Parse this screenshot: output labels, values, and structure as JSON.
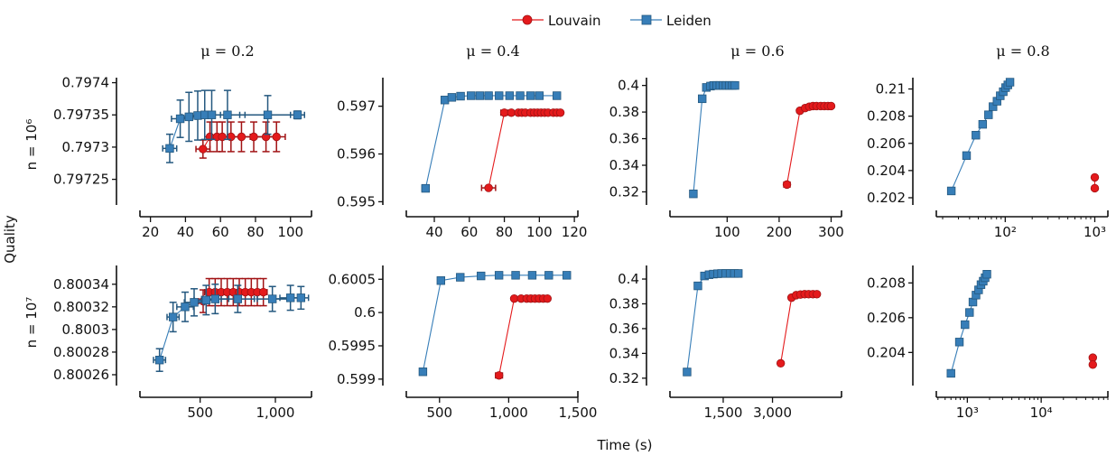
{
  "figure": {
    "legend_placement": "top-center",
    "x_label": "Time (s)",
    "y_label": "Quality",
    "column_titles": [
      "μ = 0.2",
      "μ = 0.4",
      "μ = 0.6",
      "μ = 0.8"
    ],
    "row_labels": [
      "n = 10⁶",
      "n = 10⁷"
    ],
    "series": [
      {
        "name": "Louvain",
        "color": "#e41a1c",
        "marker": "circle"
      },
      {
        "name": "Leiden",
        "color": "#377eb8",
        "marker": "square"
      }
    ]
  },
  "chart_data": [
    {
      "type": "line",
      "row": 0,
      "col": 0,
      "xscale": "linear",
      "xlim": [
        14,
        112
      ],
      "ylim": [
        0.797213,
        0.797405
      ],
      "xticks": [
        20,
        40,
        60,
        80,
        100
      ],
      "xtick_labels": [
        "20",
        "40",
        "60",
        "80",
        "100"
      ],
      "yticks": [
        0.79725,
        0.7973,
        0.79735,
        0.7974
      ],
      "ytick_labels": [
        "0.79725",
        "0.7973",
        "0.79735",
        "0.7974"
      ],
      "series": [
        {
          "name": "Louvain",
          "x": [
            50,
            54,
            58,
            61,
            66,
            72,
            79,
            86,
            92
          ],
          "y": [
            0.797297,
            0.797316,
            0.797316,
            0.797316,
            0.797316,
            0.797316,
            0.797316,
            0.797316,
            0.797316
          ],
          "xerr": [
            4,
            3,
            4,
            3,
            6,
            5,
            6,
            7,
            5
          ],
          "yerr": [
            1.4e-05,
            2.3e-05,
            2.3e-05,
            2.3e-05,
            2.3e-05,
            2.3e-05,
            2.3e-05,
            2.3e-05,
            2.3e-05
          ]
        },
        {
          "name": "Leiden",
          "x": [
            31,
            37,
            42,
            47,
            51,
            55,
            64,
            87,
            104
          ],
          "y": [
            0.797298,
            0.797344,
            0.797347,
            0.797349,
            0.79735,
            0.79735,
            0.79735,
            0.79735,
            0.79735
          ],
          "xerr": [
            4,
            5,
            4,
            4,
            6,
            5,
            10,
            16,
            4
          ],
          "yerr": [
            2.2e-05,
            2.9e-05,
            3.8e-05,
            3.8e-05,
            3.8e-05,
            3.8e-05,
            3.8e-05,
            3e-05,
            6e-06
          ]
        }
      ]
    },
    {
      "type": "line",
      "row": 0,
      "col": 1,
      "xscale": "linear",
      "xlim": [
        24,
        122
      ],
      "ylim": [
        0.59497,
        0.59756
      ],
      "xticks": [
        40,
        60,
        80,
        100,
        120
      ],
      "xtick_labels": [
        "40",
        "60",
        "80",
        "100",
        "120"
      ],
      "yticks": [
        0.595,
        0.596,
        0.597
      ],
      "ytick_labels": [
        "0.595",
        "0.596",
        "0.597"
      ],
      "series": [
        {
          "name": "Louvain",
          "x": [
            71,
            80,
            84,
            88,
            90,
            92,
            95,
            97,
            99,
            101,
            103,
            105,
            108,
            110,
            112
          ],
          "y": [
            0.59529,
            0.596865,
            0.596865,
            0.596865,
            0.596865,
            0.596865,
            0.596865,
            0.596865,
            0.596865,
            0.596865,
            0.596865,
            0.596865,
            0.596865,
            0.596865,
            0.596865
          ],
          "xerr": [
            4,
            2,
            1,
            1,
            1,
            1,
            1,
            1,
            1,
            1,
            1,
            1,
            1,
            1,
            1
          ],
          "yerr": [
            0,
            0,
            0,
            0,
            0,
            0,
            0,
            0,
            0,
            0,
            0,
            0,
            0,
            0,
            0
          ]
        },
        {
          "name": "Leiden",
          "x": [
            35,
            46,
            50,
            55,
            61,
            66,
            71,
            77,
            83,
            89,
            95,
            100,
            110
          ],
          "y": [
            0.59528,
            0.59713,
            0.597185,
            0.59721,
            0.59722,
            0.59722,
            0.59722,
            0.59722,
            0.59722,
            0.59722,
            0.59722,
            0.59722,
            0.59722
          ],
          "xerr": [
            2,
            1,
            1,
            1,
            1,
            1,
            1,
            1,
            1,
            1,
            1,
            1,
            1
          ],
          "yerr": [
            0,
            0,
            0,
            0,
            0,
            0,
            0,
            0,
            0,
            0,
            0,
            0,
            0
          ]
        }
      ]
    },
    {
      "type": "line",
      "row": 0,
      "col": 2,
      "xscale": "linear",
      "xlim": [
        -10,
        320
      ],
      "ylim": [
        0.3115,
        0.4045
      ],
      "xticks": [
        100,
        200,
        300
      ],
      "xtick_labels": [
        "100",
        "200",
        "300"
      ],
      "yticks": [
        0.32,
        0.34,
        0.36,
        0.38,
        0.4
      ],
      "ytick_labels": [
        "0.32",
        "0.34",
        "0.36",
        "0.38",
        "0.4"
      ],
      "series": [
        {
          "name": "Louvain",
          "x": [
            215,
            240,
            250,
            258,
            265,
            272,
            280,
            287,
            294,
            300
          ],
          "y": [
            0.3255,
            0.381,
            0.383,
            0.384,
            0.3845,
            0.3845,
            0.3845,
            0.3845,
            0.3845,
            0.3845
          ],
          "xerr": [
            6,
            3,
            2,
            2,
            2,
            2,
            2,
            2,
            2,
            2
          ],
          "yerr": [
            0,
            0,
            0,
            0,
            0,
            0,
            0,
            0,
            0,
            0
          ]
        },
        {
          "name": "Leiden",
          "x": [
            35,
            52,
            60,
            68,
            74,
            80,
            86,
            92,
            98,
            104,
            110,
            115
          ],
          "y": [
            0.3185,
            0.39,
            0.3985,
            0.3995,
            0.4,
            0.4,
            0.4,
            0.4,
            0.4,
            0.4,
            0.4,
            0.4
          ],
          "xerr": [
            2,
            2,
            1,
            1,
            1,
            1,
            1,
            1,
            1,
            1,
            1,
            1
          ],
          "yerr": [
            0,
            0,
            0,
            0,
            0,
            0,
            0,
            0,
            0,
            0,
            0,
            0
          ]
        }
      ]
    },
    {
      "type": "line",
      "row": 0,
      "col": 3,
      "xscale": "log",
      "xlim": [
        17,
        1400
      ],
      "ylim": [
        0.2016,
        0.2107
      ],
      "xticks": [
        100,
        1000
      ],
      "xtick_labels": [
        "10²",
        "10³"
      ],
      "yticks": [
        0.202,
        0.204,
        0.206,
        0.208,
        0.21
      ],
      "ytick_labels": [
        "0.202",
        "0.204",
        "0.206",
        "0.208",
        "0.21"
      ],
      "series": [
        {
          "name": "Louvain",
          "x": [
            1000,
            1000
          ],
          "y": [
            0.2035,
            0.2027
          ],
          "xerr": [
            0,
            0
          ],
          "yerr": [
            0,
            0
          ]
        },
        {
          "name": "Leiden",
          "x": [
            25,
            37,
            47,
            56,
            65,
            73,
            81,
            88,
            95,
            101,
            107,
            113
          ],
          "y": [
            0.2025,
            0.2051,
            0.2066,
            0.2074,
            0.2081,
            0.2087,
            0.2091,
            0.2095,
            0.2098,
            0.2101,
            0.2103,
            0.2105
          ],
          "xerr": [
            0,
            0,
            0,
            0,
            0,
            0,
            0,
            0,
            0,
            0,
            0,
            0
          ],
          "yerr": [
            0,
            0,
            0,
            0,
            0,
            0,
            0,
            0,
            0,
            0,
            0,
            0
          ]
        }
      ]
    },
    {
      "type": "line",
      "row": 1,
      "col": 0,
      "xscale": "linear",
      "xlim": [
        100,
        1240
      ],
      "ylim": [
        0.800252,
        0.800355
      ],
      "xticks": [
        500,
        1000
      ],
      "xtick_labels": [
        "500",
        "1,000"
      ],
      "yticks": [
        0.80026,
        0.80028,
        0.8003,
        0.80032,
        0.80034
      ],
      "ytick_labels": [
        "0.80026",
        "0.80028",
        "0.8003",
        "0.80032",
        "0.80034"
      ],
      "series": [
        {
          "name": "Louvain",
          "x": [
            520,
            560,
            600,
            640,
            680,
            720,
            760,
            800,
            840,
            880,
            920
          ],
          "y": [
            0.800325,
            0.800333,
            0.800333,
            0.800333,
            0.800333,
            0.800333,
            0.800333,
            0.800333,
            0.800333,
            0.800333,
            0.800333
          ],
          "xerr": [
            30,
            30,
            25,
            25,
            25,
            25,
            25,
            25,
            25,
            25,
            25
          ],
          "yerr": [
            1e-05,
            1.2e-05,
            1.2e-05,
            1.2e-05,
            1.2e-05,
            1.2e-05,
            1.2e-05,
            1.2e-05,
            1.2e-05,
            1.2e-05,
            1.2e-05
          ]
        },
        {
          "name": "Leiden",
          "x": [
            230,
            320,
            400,
            460,
            540,
            600,
            750,
            980,
            1100,
            1170
          ],
          "y": [
            0.800273,
            0.800311,
            0.80032,
            0.800324,
            0.800326,
            0.800327,
            0.800327,
            0.800327,
            0.800328,
            0.800328
          ],
          "xerr": [
            40,
            40,
            55,
            65,
            80,
            90,
            110,
            100,
            70,
            50
          ],
          "yerr": [
            1e-05,
            1.3e-05,
            1.3e-05,
            1.2e-05,
            1.3e-05,
            1.3e-05,
            1.2e-05,
            1.1e-05,
            1.1e-05,
            1e-05
          ]
        }
      ]
    },
    {
      "type": "line",
      "row": 1,
      "col": 1,
      "xscale": "linear",
      "xlim": [
        260,
        1500
      ],
      "ylim": [
        0.59893,
        0.60068
      ],
      "xticks": [
        500,
        1000,
        1500
      ],
      "xtick_labels": [
        "500",
        "1,000",
        "1,500"
      ],
      "yticks": [
        0.599,
        0.5995,
        0.6,
        0.6005
      ],
      "ytick_labels": [
        "0.599",
        "0.5995",
        "0.6",
        "0.6005"
      ],
      "series": [
        {
          "name": "Louvain",
          "x": [
            930,
            1040,
            1090,
            1130,
            1160,
            1190,
            1220,
            1250,
            1280
          ],
          "y": [
            0.599055,
            0.60021,
            0.60021,
            0.60021,
            0.60021,
            0.60021,
            0.60021,
            0.60021,
            0.60021
          ],
          "xerr": [
            25,
            15,
            10,
            10,
            10,
            10,
            10,
            10,
            10
          ],
          "yerr": [
            0,
            0,
            0,
            0,
            0,
            0,
            0,
            0,
            0
          ]
        },
        {
          "name": "Leiden",
          "x": [
            380,
            510,
            650,
            800,
            930,
            1050,
            1170,
            1290,
            1420
          ],
          "y": [
            0.59911,
            0.60048,
            0.60053,
            0.60055,
            0.60056,
            0.60056,
            0.60056,
            0.60056,
            0.60056
          ],
          "xerr": [
            20,
            10,
            10,
            10,
            10,
            10,
            10,
            10,
            10
          ],
          "yerr": [
            0,
            0,
            0,
            0,
            0,
            0,
            0,
            0,
            0
          ]
        }
      ]
    },
    {
      "type": "line",
      "row": 1,
      "col": 2,
      "xscale": "linear",
      "xlim": [
        -120,
        5100
      ],
      "ylim": [
        0.3155,
        0.4095
      ],
      "xticks": [
        1500,
        3000
      ],
      "xtick_labels": [
        "1,500",
        "3,000"
      ],
      "yticks": [
        0.32,
        0.34,
        0.36,
        0.38,
        0.4
      ],
      "ytick_labels": [
        "0.32",
        "0.34",
        "0.36",
        "0.38",
        "0.4"
      ],
      "series": [
        {
          "name": "Louvain",
          "x": [
            3250,
            3580,
            3720,
            3850,
            3980,
            4100,
            4230,
            4350
          ],
          "y": [
            0.332,
            0.385,
            0.387,
            0.3875,
            0.3878,
            0.3878,
            0.3878,
            0.3878
          ],
          "xerr": [
            0,
            0,
            0,
            0,
            0,
            0,
            0,
            0
          ],
          "yerr": [
            0,
            0,
            0,
            0,
            0,
            0,
            0,
            0
          ]
        },
        {
          "name": "Leiden",
          "x": [
            400,
            730,
            930,
            1070,
            1200,
            1330,
            1450,
            1580,
            1710,
            1840,
            1960
          ],
          "y": [
            0.325,
            0.3945,
            0.4025,
            0.4035,
            0.404,
            0.4043,
            0.4045,
            0.4045,
            0.4045,
            0.4045,
            0.4045
          ],
          "xerr": [
            0,
            0,
            0,
            0,
            0,
            0,
            0,
            0,
            0,
            0,
            0
          ],
          "yerr": [
            0,
            0,
            0,
            0,
            0,
            0,
            0,
            0,
            0,
            0,
            0
          ]
        }
      ]
    },
    {
      "type": "line",
      "row": 1,
      "col": 3,
      "xscale": "log",
      "xlim": [
        380,
        80000
      ],
      "ylim": [
        0.2022,
        0.2089
      ],
      "xticks": [
        1000,
        10000
      ],
      "xtick_labels": [
        "10³",
        "10⁴"
      ],
      "yticks": [
        0.204,
        0.206,
        0.208
      ],
      "ytick_labels": [
        "0.204",
        "0.206",
        "0.208"
      ],
      "series": [
        {
          "name": "Louvain",
          "x": [
            50000,
            50000
          ],
          "y": [
            0.2037,
            0.2033
          ],
          "xerr": [
            0,
            0
          ],
          "yerr": [
            0,
            0
          ]
        },
        {
          "name": "Leiden",
          "x": [
            600,
            780,
            930,
            1070,
            1190,
            1310,
            1420,
            1530,
            1640,
            1740,
            1840
          ],
          "y": [
            0.2028,
            0.2046,
            0.2056,
            0.2063,
            0.2069,
            0.2073,
            0.2076,
            0.2079,
            0.2081,
            0.2083,
            0.2085
          ],
          "xerr": [
            0,
            0,
            0,
            0,
            0,
            0,
            0,
            0,
            0,
            0,
            0
          ],
          "yerr": [
            0,
            0,
            0,
            0,
            0,
            0,
            0,
            0,
            0,
            0,
            0
          ]
        }
      ]
    }
  ]
}
